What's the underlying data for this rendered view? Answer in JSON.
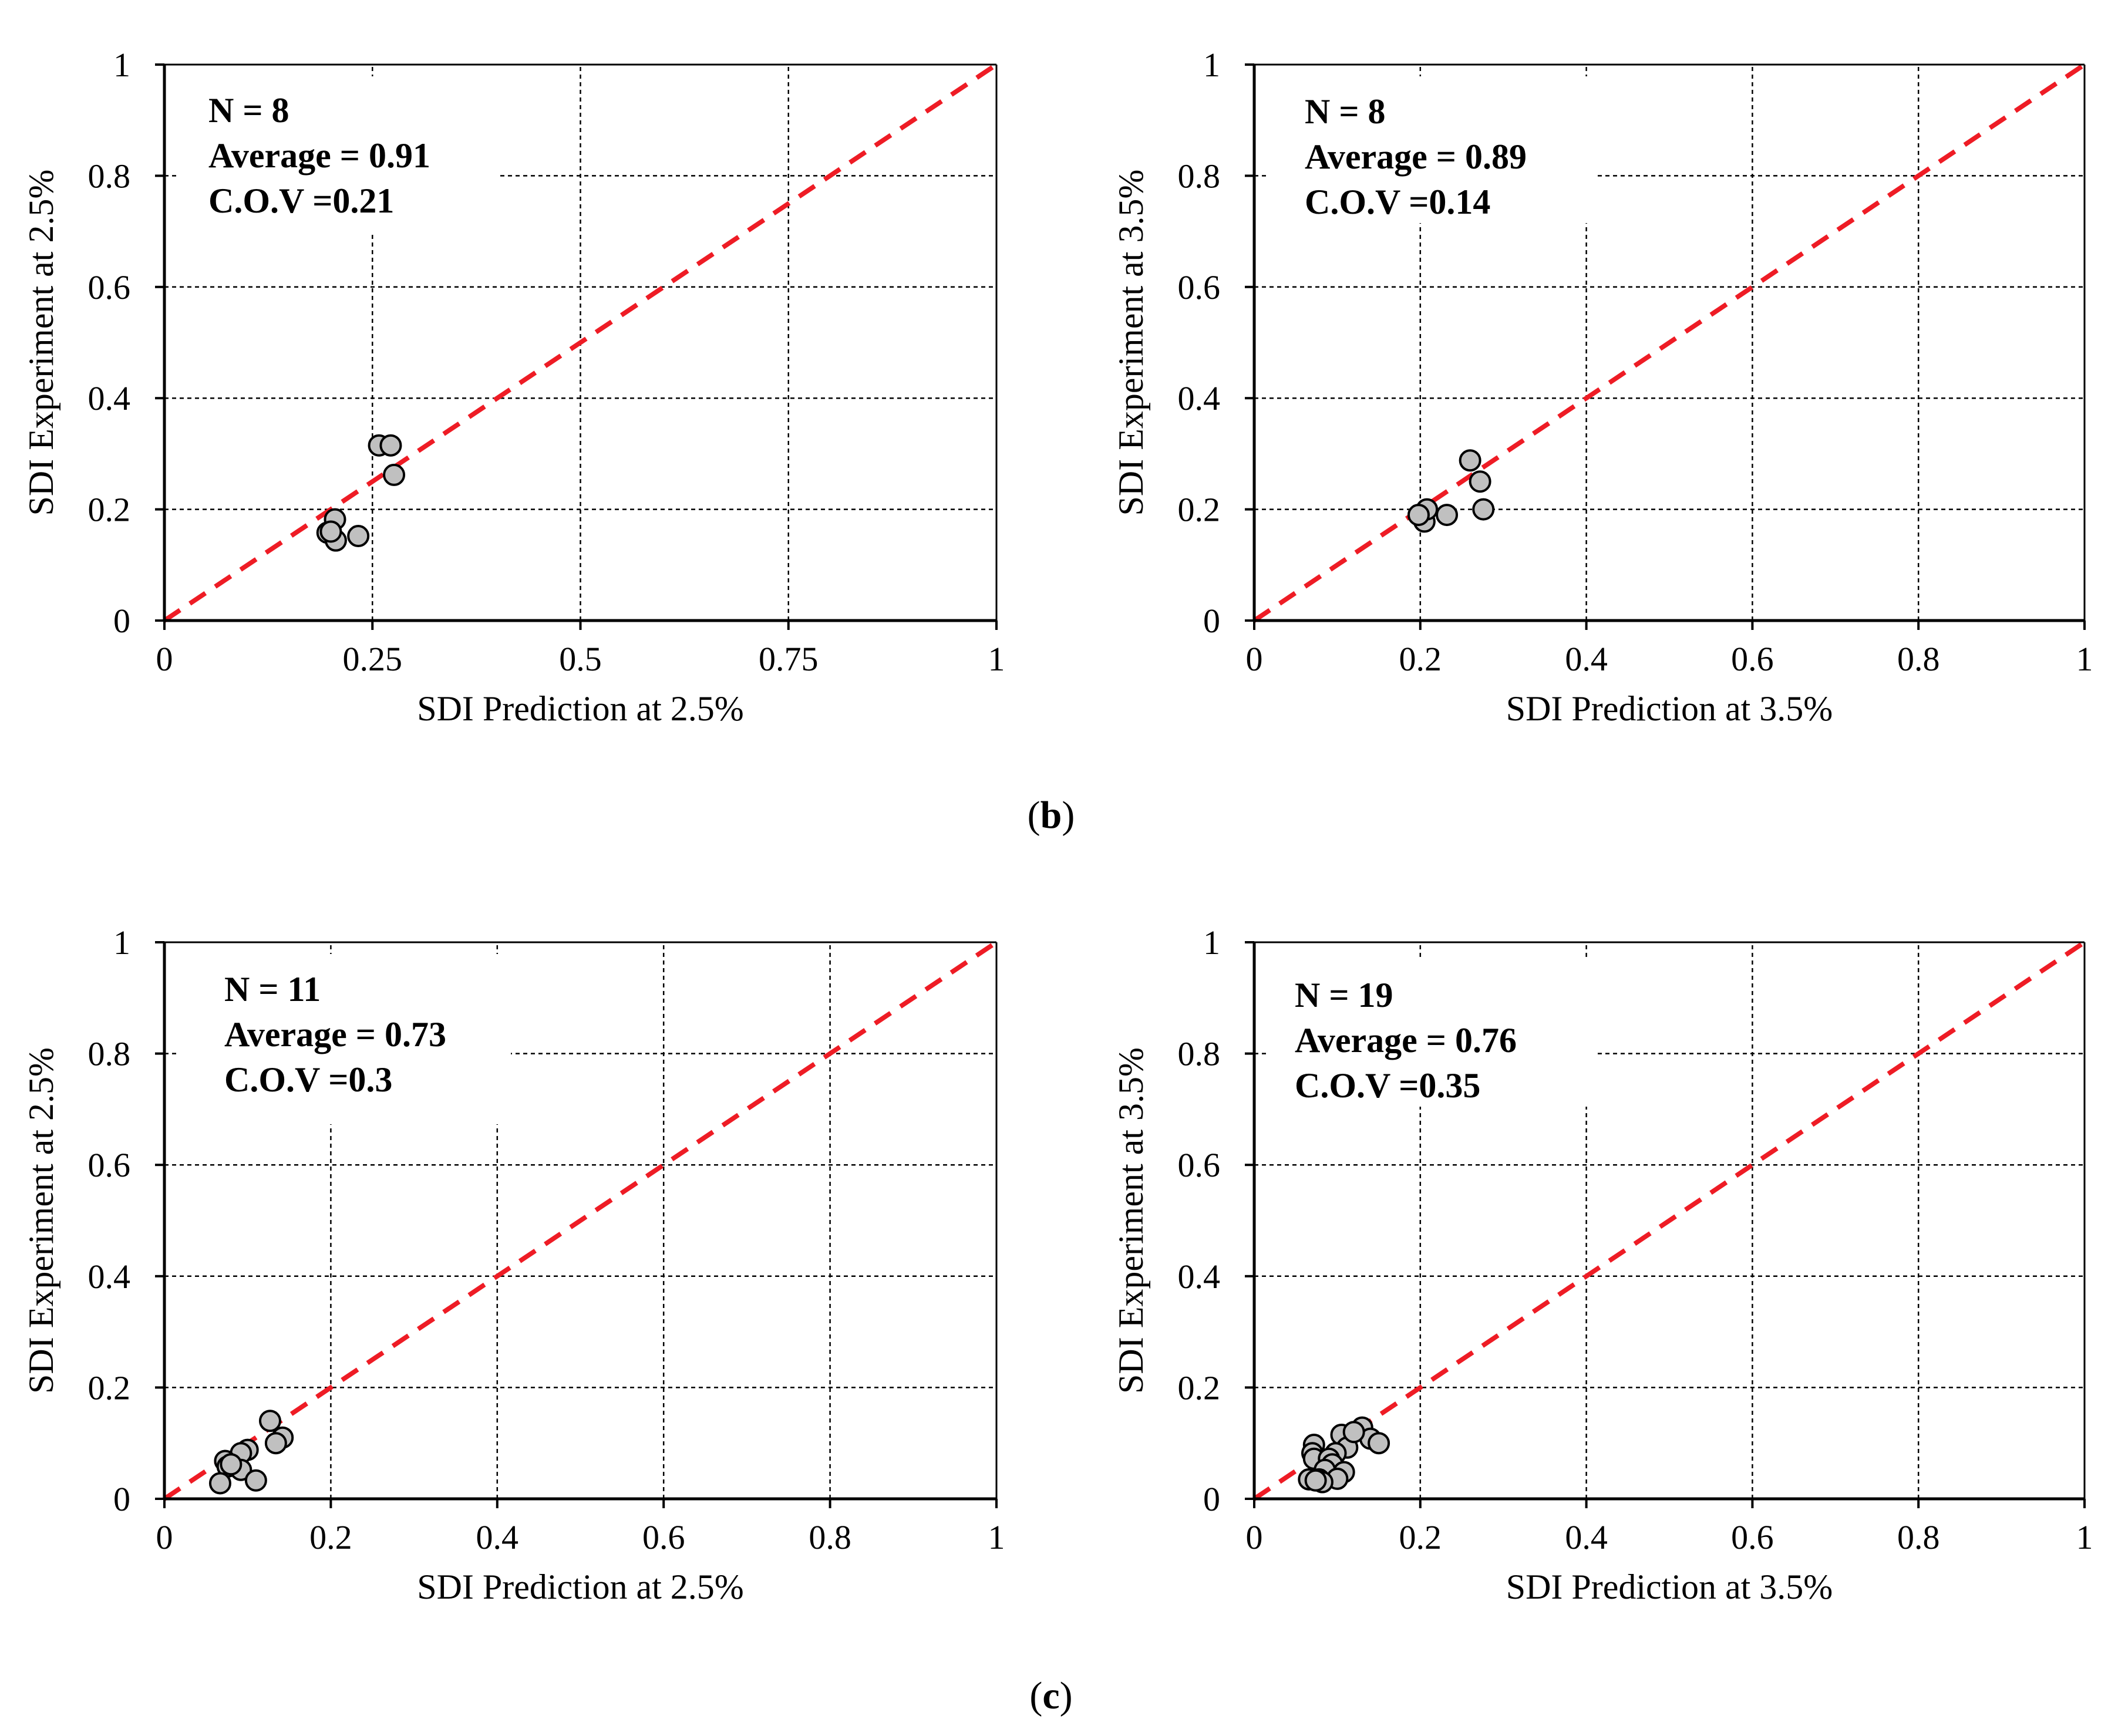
{
  "panel_labels": {
    "b": {
      "open": "(",
      "letter": "b",
      "close": ")"
    },
    "c": {
      "open": "(",
      "letter": "c",
      "close": ")"
    }
  },
  "colors": {
    "axes": "#000000",
    "grid": "#000000",
    "reference_line": "#ee1c25",
    "marker_fill": "#c0c0c0",
    "marker_edge": "#000000"
  },
  "chart_data": [
    {
      "id": "b-left",
      "type": "scatter",
      "xlabel": "SDI Prediction at 2.5%",
      "ylabel": "SDI Experiment at 2.5%",
      "xlim": [
        0,
        1
      ],
      "ylim": [
        0,
        1
      ],
      "xticks": [
        0,
        0.25,
        0.5,
        0.75,
        1
      ],
      "xtick_labels": [
        "0",
        "0.25",
        "0.5",
        "0.75",
        "1"
      ],
      "yticks": [
        0,
        0.2,
        0.4,
        0.6,
        0.8,
        1
      ],
      "ytick_labels": [
        "0",
        "0.2",
        "0.4",
        "0.6",
        "0.8",
        "1"
      ],
      "grid": true,
      "reference_line": "y = x",
      "stats": [
        "N = 8",
        "Average = 0.91",
        "C.O.V =0.21"
      ],
      "points": [
        [
          0.258,
          0.315
        ],
        [
          0.272,
          0.315
        ],
        [
          0.276,
          0.262
        ],
        [
          0.205,
          0.182
        ],
        [
          0.196,
          0.158
        ],
        [
          0.206,
          0.144
        ],
        [
          0.233,
          0.152
        ],
        [
          0.2,
          0.16
        ]
      ]
    },
    {
      "id": "b-right",
      "type": "scatter",
      "xlabel": "SDI Prediction at 3.5%",
      "ylabel": "SDI Experiment at 3.5%",
      "xlim": [
        0,
        1
      ],
      "ylim": [
        0,
        1
      ],
      "xticks": [
        0,
        0.2,
        0.4,
        0.6,
        0.8,
        1
      ],
      "xtick_labels": [
        "0",
        "0.2",
        "0.4",
        "0.6",
        "0.8",
        "1"
      ],
      "yticks": [
        0,
        0.2,
        0.4,
        0.6,
        0.8,
        1
      ],
      "ytick_labels": [
        "0",
        "0.2",
        "0.4",
        "0.6",
        "0.8",
        "1"
      ],
      "grid": true,
      "reference_line": "y = x",
      "stats": [
        "N = 8",
        "Average = 0.89",
        "C.O.V =0.14"
      ],
      "points": [
        [
          0.26,
          0.288
        ],
        [
          0.272,
          0.25
        ],
        [
          0.276,
          0.2
        ],
        [
          0.232,
          0.19
        ],
        [
          0.2,
          0.188
        ],
        [
          0.205,
          0.178
        ],
        [
          0.208,
          0.2
        ],
        [
          0.198,
          0.19
        ]
      ]
    },
    {
      "id": "c-left",
      "type": "scatter",
      "xlabel": "SDI Prediction at 2.5%",
      "ylabel": "SDI Experiment at 2.5%",
      "xlim": [
        0,
        1
      ],
      "ylim": [
        0,
        1
      ],
      "xticks": [
        0,
        0.2,
        0.4,
        0.6,
        0.8,
        1
      ],
      "xtick_labels": [
        "0",
        "0.2",
        "0.4",
        "0.6",
        "0.8",
        "1"
      ],
      "yticks": [
        0,
        0.2,
        0.4,
        0.6,
        0.8,
        1
      ],
      "ytick_labels": [
        "0",
        "0.2",
        "0.4",
        "0.6",
        "0.8",
        "1"
      ],
      "grid": true,
      "reference_line": "y = x",
      "stats": [
        "N = 11",
        "Average = 0.73",
        "C.O.V =0.3"
      ],
      "points": [
        [
          0.127,
          0.14
        ],
        [
          0.142,
          0.11
        ],
        [
          0.134,
          0.1
        ],
        [
          0.1,
          0.088
        ],
        [
          0.092,
          0.082
        ],
        [
          0.073,
          0.068
        ],
        [
          0.076,
          0.058
        ],
        [
          0.092,
          0.052
        ],
        [
          0.11,
          0.033
        ],
        [
          0.067,
          0.028
        ],
        [
          0.08,
          0.062
        ]
      ]
    },
    {
      "id": "c-right",
      "type": "scatter",
      "xlabel": "SDI Prediction at 3.5%",
      "ylabel": "SDI Experiment at 3.5%",
      "xlim": [
        0,
        1
      ],
      "ylim": [
        0,
        1
      ],
      "xticks": [
        0,
        0.2,
        0.4,
        0.6,
        0.8,
        1
      ],
      "xtick_labels": [
        "0",
        "0.2",
        "0.4",
        "0.6",
        "0.8",
        "1"
      ],
      "yticks": [
        0,
        0.2,
        0.4,
        0.6,
        0.8,
        1
      ],
      "ytick_labels": [
        "0",
        "0.2",
        "0.4",
        "0.6",
        "0.8",
        "1"
      ],
      "grid": true,
      "reference_line": "y = x",
      "stats": [
        "N = 19",
        "Average = 0.76",
        "C.O.V =0.35"
      ],
      "points": [
        [
          0.072,
          0.097
        ],
        [
          0.07,
          0.082
        ],
        [
          0.072,
          0.072
        ],
        [
          0.105,
          0.115
        ],
        [
          0.13,
          0.128
        ],
        [
          0.14,
          0.108
        ],
        [
          0.15,
          0.1
        ],
        [
          0.112,
          0.092
        ],
        [
          0.098,
          0.082
        ],
        [
          0.09,
          0.072
        ],
        [
          0.094,
          0.062
        ],
        [
          0.085,
          0.052
        ],
        [
          0.108,
          0.048
        ],
        [
          0.1,
          0.036
        ],
        [
          0.078,
          0.035
        ],
        [
          0.066,
          0.035
        ],
        [
          0.082,
          0.03
        ],
        [
          0.074,
          0.033
        ],
        [
          0.12,
          0.12
        ]
      ]
    }
  ]
}
